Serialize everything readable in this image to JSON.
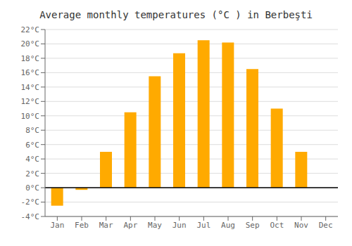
{
  "chart_data": {
    "type": "bar",
    "title": "Average monthly temperatures (°C ) in Berbeşti",
    "categories": [
      "Jan",
      "Feb",
      "Mar",
      "Apr",
      "May",
      "Jun",
      "Jul",
      "Aug",
      "Sep",
      "Oct",
      "Nov",
      "Dec"
    ],
    "values": [
      -2.5,
      -0.3,
      5.0,
      10.5,
      15.5,
      18.7,
      20.5,
      20.2,
      16.5,
      11.0,
      5.0,
      0.0
    ],
    "color": "#FFAA00",
    "ylim": [
      -4,
      22
    ],
    "yticks": [
      {
        "value": -4,
        "label": "-4°C"
      },
      {
        "value": -2,
        "label": "-2°C"
      },
      {
        "value": 0,
        "label": "0°C"
      },
      {
        "value": 2,
        "label": "2°C"
      },
      {
        "value": 4,
        "label": "4°C"
      },
      {
        "value": 6,
        "label": "6°C"
      },
      {
        "value": 8,
        "label": "8°C"
      },
      {
        "value": 10,
        "label": "10°C"
      },
      {
        "value": 12,
        "label": "12°C"
      },
      {
        "value": 14,
        "label": "14°C"
      },
      {
        "value": 16,
        "label": "16°C"
      },
      {
        "value": 18,
        "label": "18°C"
      },
      {
        "value": 20,
        "label": "20°C"
      },
      {
        "value": 22,
        "label": "22°C"
      }
    ],
    "grid": true
  }
}
